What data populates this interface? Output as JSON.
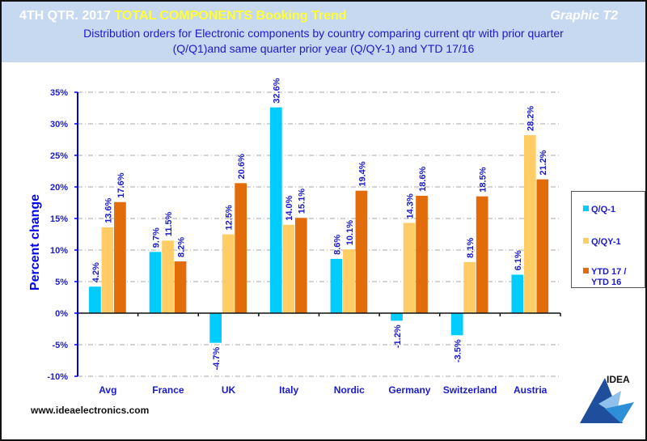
{
  "header": {
    "title_prefix": "4TH QTR. 2017",
    "title_highlight": "TOTAL COMPONENTS  Booking Trend",
    "graphic_label": "Graphic T2",
    "subtitle_line1": "Distribution  orders for Electronic components by country comparing  current qtr with prior quarter",
    "subtitle_line2": "(Q/Q1)and  same quarter prior year (Q/QY-1)  and YTD  17/16"
  },
  "footer": {
    "url": "www.ideaelectronics.com",
    "logo_text": "IDEA"
  },
  "colors": {
    "qq1": "#00ccff",
    "qqy1": "#ffcc66",
    "ytd": "#e36c0a",
    "axis": "#0000ee",
    "label": "#1a1acc"
  },
  "chart_data": {
    "type": "bar",
    "title": "4TH QTR. 2017 TOTAL COMPONENTS Booking Trend",
    "xlabel": "",
    "ylabel": "Percent change",
    "ylim": [
      -10,
      35
    ],
    "yticks": [
      35,
      30,
      25,
      20,
      15,
      10,
      5,
      0,
      -5,
      -10
    ],
    "ytick_labels": [
      "35%",
      "30%",
      "25%",
      "20%",
      "15%",
      "10%",
      "5%",
      "0%",
      "-5%",
      "-10%"
    ],
    "grid": true,
    "legend_position": "right",
    "categories": [
      "Avg",
      "France",
      "UK",
      "Italy",
      "Nordic",
      "Germany",
      "Switzerland",
      "Austria"
    ],
    "series": [
      {
        "name": "Q/Q-1",
        "values": [
          4.2,
          9.7,
          -4.7,
          32.6,
          8.6,
          -1.2,
          -3.5,
          6.1
        ],
        "labels": [
          "4.2%",
          "9.7%",
          "-4.7%",
          "32.6%",
          "8.6%",
          "-1.2%",
          "-3.5%",
          "6.1%"
        ]
      },
      {
        "name": "Q/QY-1",
        "values": [
          13.6,
          11.5,
          12.5,
          14.0,
          10.1,
          14.3,
          8.1,
          28.2
        ],
        "labels": [
          "13.6%",
          "11.5%",
          "12.5%",
          "14.0%",
          "10.1%",
          "14.3%",
          "8.1%",
          "28.2%"
        ]
      },
      {
        "name": "YTD 17 / YTD 16",
        "values": [
          17.6,
          8.2,
          20.6,
          15.1,
          19.4,
          18.6,
          18.5,
          21.2
        ],
        "labels": [
          "17.6%",
          "8.2%",
          "20.6%",
          "15.1%",
          "19.4%",
          "18.6%",
          "18.5%",
          "21.2%"
        ]
      }
    ],
    "legend": [
      {
        "label_line1": "Q/Q-1",
        "label_line2": ""
      },
      {
        "label_line1": "Q/QY-1",
        "label_line2": ""
      },
      {
        "label_line1": "YTD 17 /",
        "label_line2": "YTD 16"
      }
    ]
  }
}
